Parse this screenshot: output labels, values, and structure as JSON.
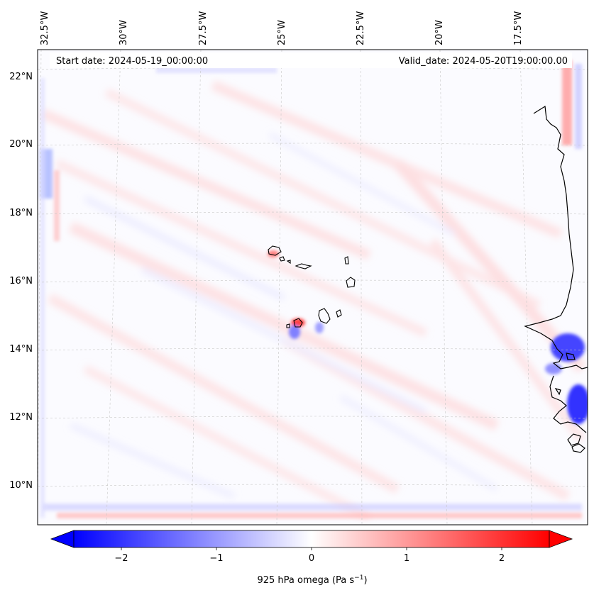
{
  "header": {
    "start_date": "Start date: 2024-05-19_00:00:00",
    "valid_date": "Valid_date: 2024-05-20T19:00:00.00"
  },
  "lon_labels": [
    "32.5°W",
    "30°W",
    "27.5°W",
    "25°W",
    "22.5°W",
    "20°W",
    "17.5°W"
  ],
  "lat_labels": [
    "22°N",
    "20°N",
    "18°N",
    "16°N",
    "14°N",
    "12°N",
    "10°N"
  ],
  "colorbar": {
    "label_main": "925 hPa omega (Pa s",
    "label_exp": "−1",
    "label_close": ")",
    "ticks": [
      "−2",
      "−1",
      "0",
      "1",
      "2"
    ],
    "range": [
      -2.7,
      2.7
    ],
    "colors": {
      "negative": "#0000ff",
      "zero": "#ffffff",
      "positive": "#ff0000"
    }
  }
}
